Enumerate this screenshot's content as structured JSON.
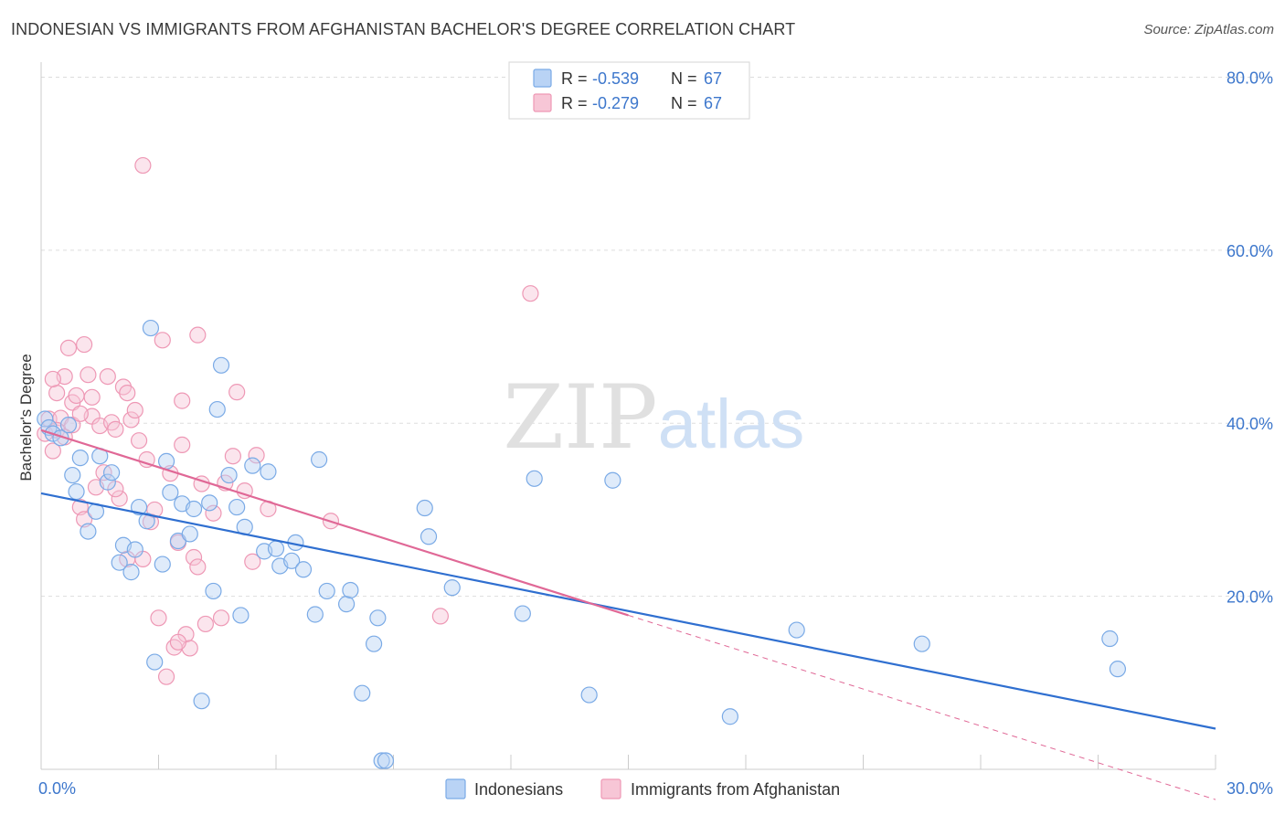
{
  "title": "INDONESIAN VS IMMIGRANTS FROM AFGHANISTAN BACHELOR'S DEGREE CORRELATION CHART",
  "source": "Source: ZipAtlas.com",
  "watermark": {
    "zip": "ZIP",
    "atlas": "atlas"
  },
  "colors": {
    "blue": "#7aaae6",
    "blue_line": "#2f6fd0",
    "blue_fill": "#b9d3f5",
    "pink": "#ee98b5",
    "pink_line": "#e06896",
    "pink_fill": "#f7c6d6",
    "value_text": "#3d77cc",
    "grid": "#dddddd"
  },
  "legend": {
    "rows": [
      {
        "r_label": "R = ",
        "r_value": "-0.539",
        "n_label": "N = ",
        "n_value": "67"
      },
      {
        "r_label": "R = ",
        "r_value": "-0.279",
        "n_label": "N = ",
        "n_value": "67"
      }
    ]
  },
  "chart_data": {
    "type": "scatter",
    "title": "INDONESIAN VS IMMIGRANTS FROM AFGHANISTAN BACHELOR'S DEGREE CORRELATION CHART",
    "xlabel": "",
    "ylabel": "Bachelor's Degree",
    "xlim": [
      0,
      30
    ],
    "ylim": [
      0,
      81
    ],
    "x_tick_labels": [
      "0.0%",
      "30.0%"
    ],
    "y_ticks": [
      20,
      40,
      60,
      80
    ],
    "y_tick_labels": [
      "20.0%",
      "40.0%",
      "60.0%",
      "80.0%"
    ],
    "grid": true,
    "legend_position": "top-center",
    "series": [
      {
        "name": "Indonesians",
        "color": "#7aaae6",
        "points": [
          [
            0.1,
            40.5
          ],
          [
            0.2,
            39.5
          ],
          [
            0.3,
            38.8
          ],
          [
            0.5,
            38.3
          ],
          [
            0.7,
            39.8
          ],
          [
            0.8,
            34
          ],
          [
            0.9,
            32.1
          ],
          [
            1.0,
            36
          ],
          [
            1.2,
            27.5
          ],
          [
            1.4,
            29.8
          ],
          [
            1.5,
            36.2
          ],
          [
            1.7,
            33.2
          ],
          [
            1.8,
            34.3
          ],
          [
            2.0,
            23.9
          ],
          [
            2.1,
            25.9
          ],
          [
            2.3,
            22.8
          ],
          [
            2.4,
            25.4
          ],
          [
            2.5,
            30.3
          ],
          [
            2.7,
            28.7
          ],
          [
            2.8,
            51
          ],
          [
            2.9,
            12.4
          ],
          [
            3.1,
            23.7
          ],
          [
            3.2,
            35.6
          ],
          [
            3.3,
            32
          ],
          [
            3.5,
            26.4
          ],
          [
            3.6,
            30.7
          ],
          [
            3.8,
            27.2
          ],
          [
            3.9,
            30.1
          ],
          [
            4.1,
            7.9
          ],
          [
            4.3,
            30.8
          ],
          [
            4.4,
            20.6
          ],
          [
            4.5,
            41.6
          ],
          [
            4.6,
            46.7
          ],
          [
            4.8,
            34
          ],
          [
            5.0,
            30.3
          ],
          [
            5.1,
            17.8
          ],
          [
            5.2,
            28
          ],
          [
            5.4,
            35.1
          ],
          [
            5.7,
            25.2
          ],
          [
            5.8,
            34.4
          ],
          [
            6.0,
            25.5
          ],
          [
            6.1,
            23.5
          ],
          [
            6.4,
            24.1
          ],
          [
            6.5,
            26.2
          ],
          [
            6.7,
            23.1
          ],
          [
            7.0,
            17.9
          ],
          [
            7.1,
            35.8
          ],
          [
            7.3,
            20.6
          ],
          [
            7.8,
            19.1
          ],
          [
            7.9,
            20.7
          ],
          [
            8.2,
            8.8
          ],
          [
            8.5,
            14.5
          ],
          [
            8.6,
            17.5
          ],
          [
            8.7,
            1.0
          ],
          [
            8.8,
            1.0
          ],
          [
            9.8,
            30.2
          ],
          [
            9.9,
            26.9
          ],
          [
            10.5,
            21
          ],
          [
            12.3,
            18
          ],
          [
            12.6,
            33.6
          ],
          [
            14.0,
            8.6
          ],
          [
            14.6,
            33.4
          ],
          [
            17.6,
            6.1
          ],
          [
            19.3,
            16.1
          ],
          [
            22.5,
            14.5
          ],
          [
            27.3,
            15.1
          ],
          [
            27.5,
            11.6
          ]
        ]
      },
      {
        "name": "Immigrants from Afghanistan",
        "color": "#ee98b5",
        "points": [
          [
            0.1,
            38.8
          ],
          [
            0.2,
            40.5
          ],
          [
            0.3,
            36.8
          ],
          [
            0.4,
            43.5
          ],
          [
            0.5,
            40.6
          ],
          [
            0.6,
            45.4
          ],
          [
            0.7,
            48.7
          ],
          [
            0.8,
            42.4
          ],
          [
            0.9,
            43.2
          ],
          [
            1.0,
            30.3
          ],
          [
            1.1,
            49.1
          ],
          [
            1.2,
            45.6
          ],
          [
            1.3,
            40.8
          ],
          [
            1.4,
            32.6
          ],
          [
            1.5,
            39.7
          ],
          [
            1.6,
            34.3
          ],
          [
            1.7,
            45.4
          ],
          [
            1.8,
            40.1
          ],
          [
            1.9,
            39.3
          ],
          [
            2.0,
            31.3
          ],
          [
            2.1,
            44.2
          ],
          [
            2.2,
            43.5
          ],
          [
            2.3,
            40.4
          ],
          [
            2.4,
            41.5
          ],
          [
            2.5,
            38
          ],
          [
            2.6,
            24.3
          ],
          [
            2.7,
            35.8
          ],
          [
            2.8,
            28.6
          ],
          [
            2.9,
            30
          ],
          [
            3.0,
            17.5
          ],
          [
            3.1,
            49.6
          ],
          [
            3.2,
            10.7
          ],
          [
            3.3,
            34.2
          ],
          [
            3.4,
            14.1
          ],
          [
            3.5,
            26.2
          ],
          [
            3.6,
            42.6
          ],
          [
            3.7,
            15.6
          ],
          [
            3.8,
            14
          ],
          [
            3.9,
            24.5
          ],
          [
            4.0,
            50.2
          ],
          [
            4.1,
            33
          ],
          [
            4.2,
            16.8
          ],
          [
            4.4,
            29.6
          ],
          [
            4.6,
            17.5
          ],
          [
            4.7,
            33.1
          ],
          [
            4.9,
            36.2
          ],
          [
            5.0,
            43.6
          ],
          [
            5.2,
            32.2
          ],
          [
            5.4,
            24
          ],
          [
            5.5,
            36.3
          ],
          [
            0.3,
            45.1
          ],
          [
            0.8,
            39.8
          ],
          [
            1.3,
            43
          ],
          [
            2.6,
            69.8
          ],
          [
            3.5,
            14.7
          ],
          [
            4.0,
            23.4
          ],
          [
            7.4,
            28.7
          ],
          [
            10.2,
            17.7
          ],
          [
            12.5,
            55
          ],
          [
            1.0,
            41.1
          ],
          [
            1.9,
            32.4
          ],
          [
            2.2,
            24.3
          ],
          [
            0.4,
            39.2
          ],
          [
            0.6,
            38.4
          ],
          [
            1.1,
            28.9
          ],
          [
            3.6,
            37.5
          ],
          [
            5.8,
            30.1
          ]
        ]
      }
    ],
    "trendlines": [
      {
        "series": "Indonesians",
        "x": [
          0,
          30
        ],
        "y": [
          31.9,
          4.7
        ],
        "style": "solid"
      },
      {
        "series": "Immigrants from Afghanistan",
        "x": [
          0,
          15
        ],
        "y": [
          39.2,
          17.8
        ],
        "style": "solid"
      },
      {
        "series": "Immigrants from Afghanistan",
        "x": [
          15,
          30
        ],
        "y": [
          17.8,
          -3.5
        ],
        "style": "dashed"
      }
    ]
  }
}
